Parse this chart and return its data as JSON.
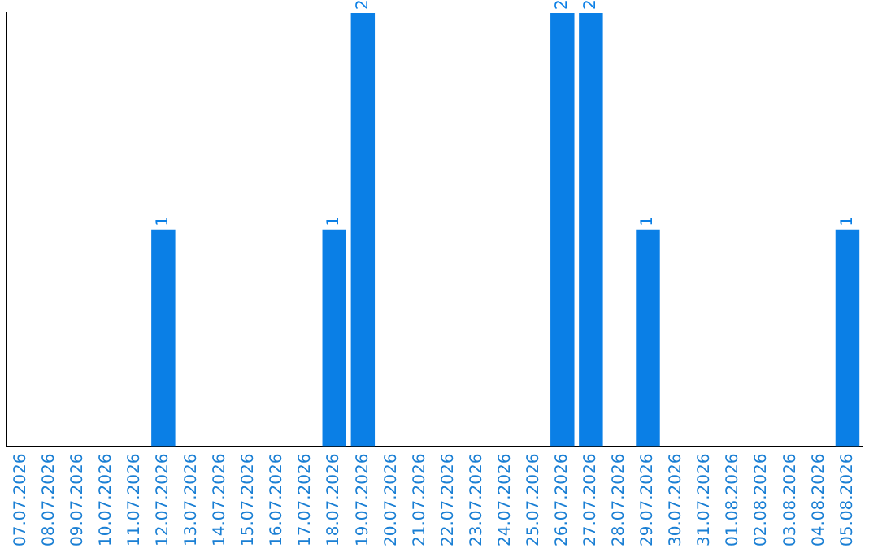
{
  "chart_data": {
    "type": "bar",
    "categories": [
      "07.07.2026",
      "08.07.2026",
      "09.07.2026",
      "10.07.2026",
      "11.07.2026",
      "12.07.2026",
      "13.07.2026",
      "14.07.2026",
      "15.07.2026",
      "16.07.2026",
      "17.07.2026",
      "18.07.2026",
      "19.07.2026",
      "20.07.2026",
      "21.07.2026",
      "22.07.2026",
      "23.07.2026",
      "24.07.2026",
      "25.07.2026",
      "26.07.2026",
      "27.07.2026",
      "28.07.2026",
      "29.07.2026",
      "30.07.2026",
      "31.07.2026",
      "01.08.2026",
      "02.08.2026",
      "03.08.2026",
      "04.08.2026",
      "05.08.2026"
    ],
    "values": [
      0,
      0,
      0,
      0,
      0,
      1,
      0,
      0,
      0,
      0,
      0,
      1,
      2,
      0,
      0,
      0,
      0,
      0,
      0,
      2,
      2,
      0,
      1,
      0,
      0,
      0,
      0,
      0,
      0,
      1
    ],
    "value_labels": [
      null,
      null,
      null,
      null,
      null,
      "1",
      null,
      null,
      null,
      null,
      null,
      "1",
      "2",
      null,
      null,
      null,
      null,
      null,
      null,
      "2",
      "2",
      null,
      "1",
      null,
      null,
      null,
      null,
      null,
      null,
      "1"
    ],
    "color": "#0a7fe6",
    "ylim": [
      0,
      2
    ],
    "tick_labels": "x",
    "grid": false,
    "legend": false
  }
}
